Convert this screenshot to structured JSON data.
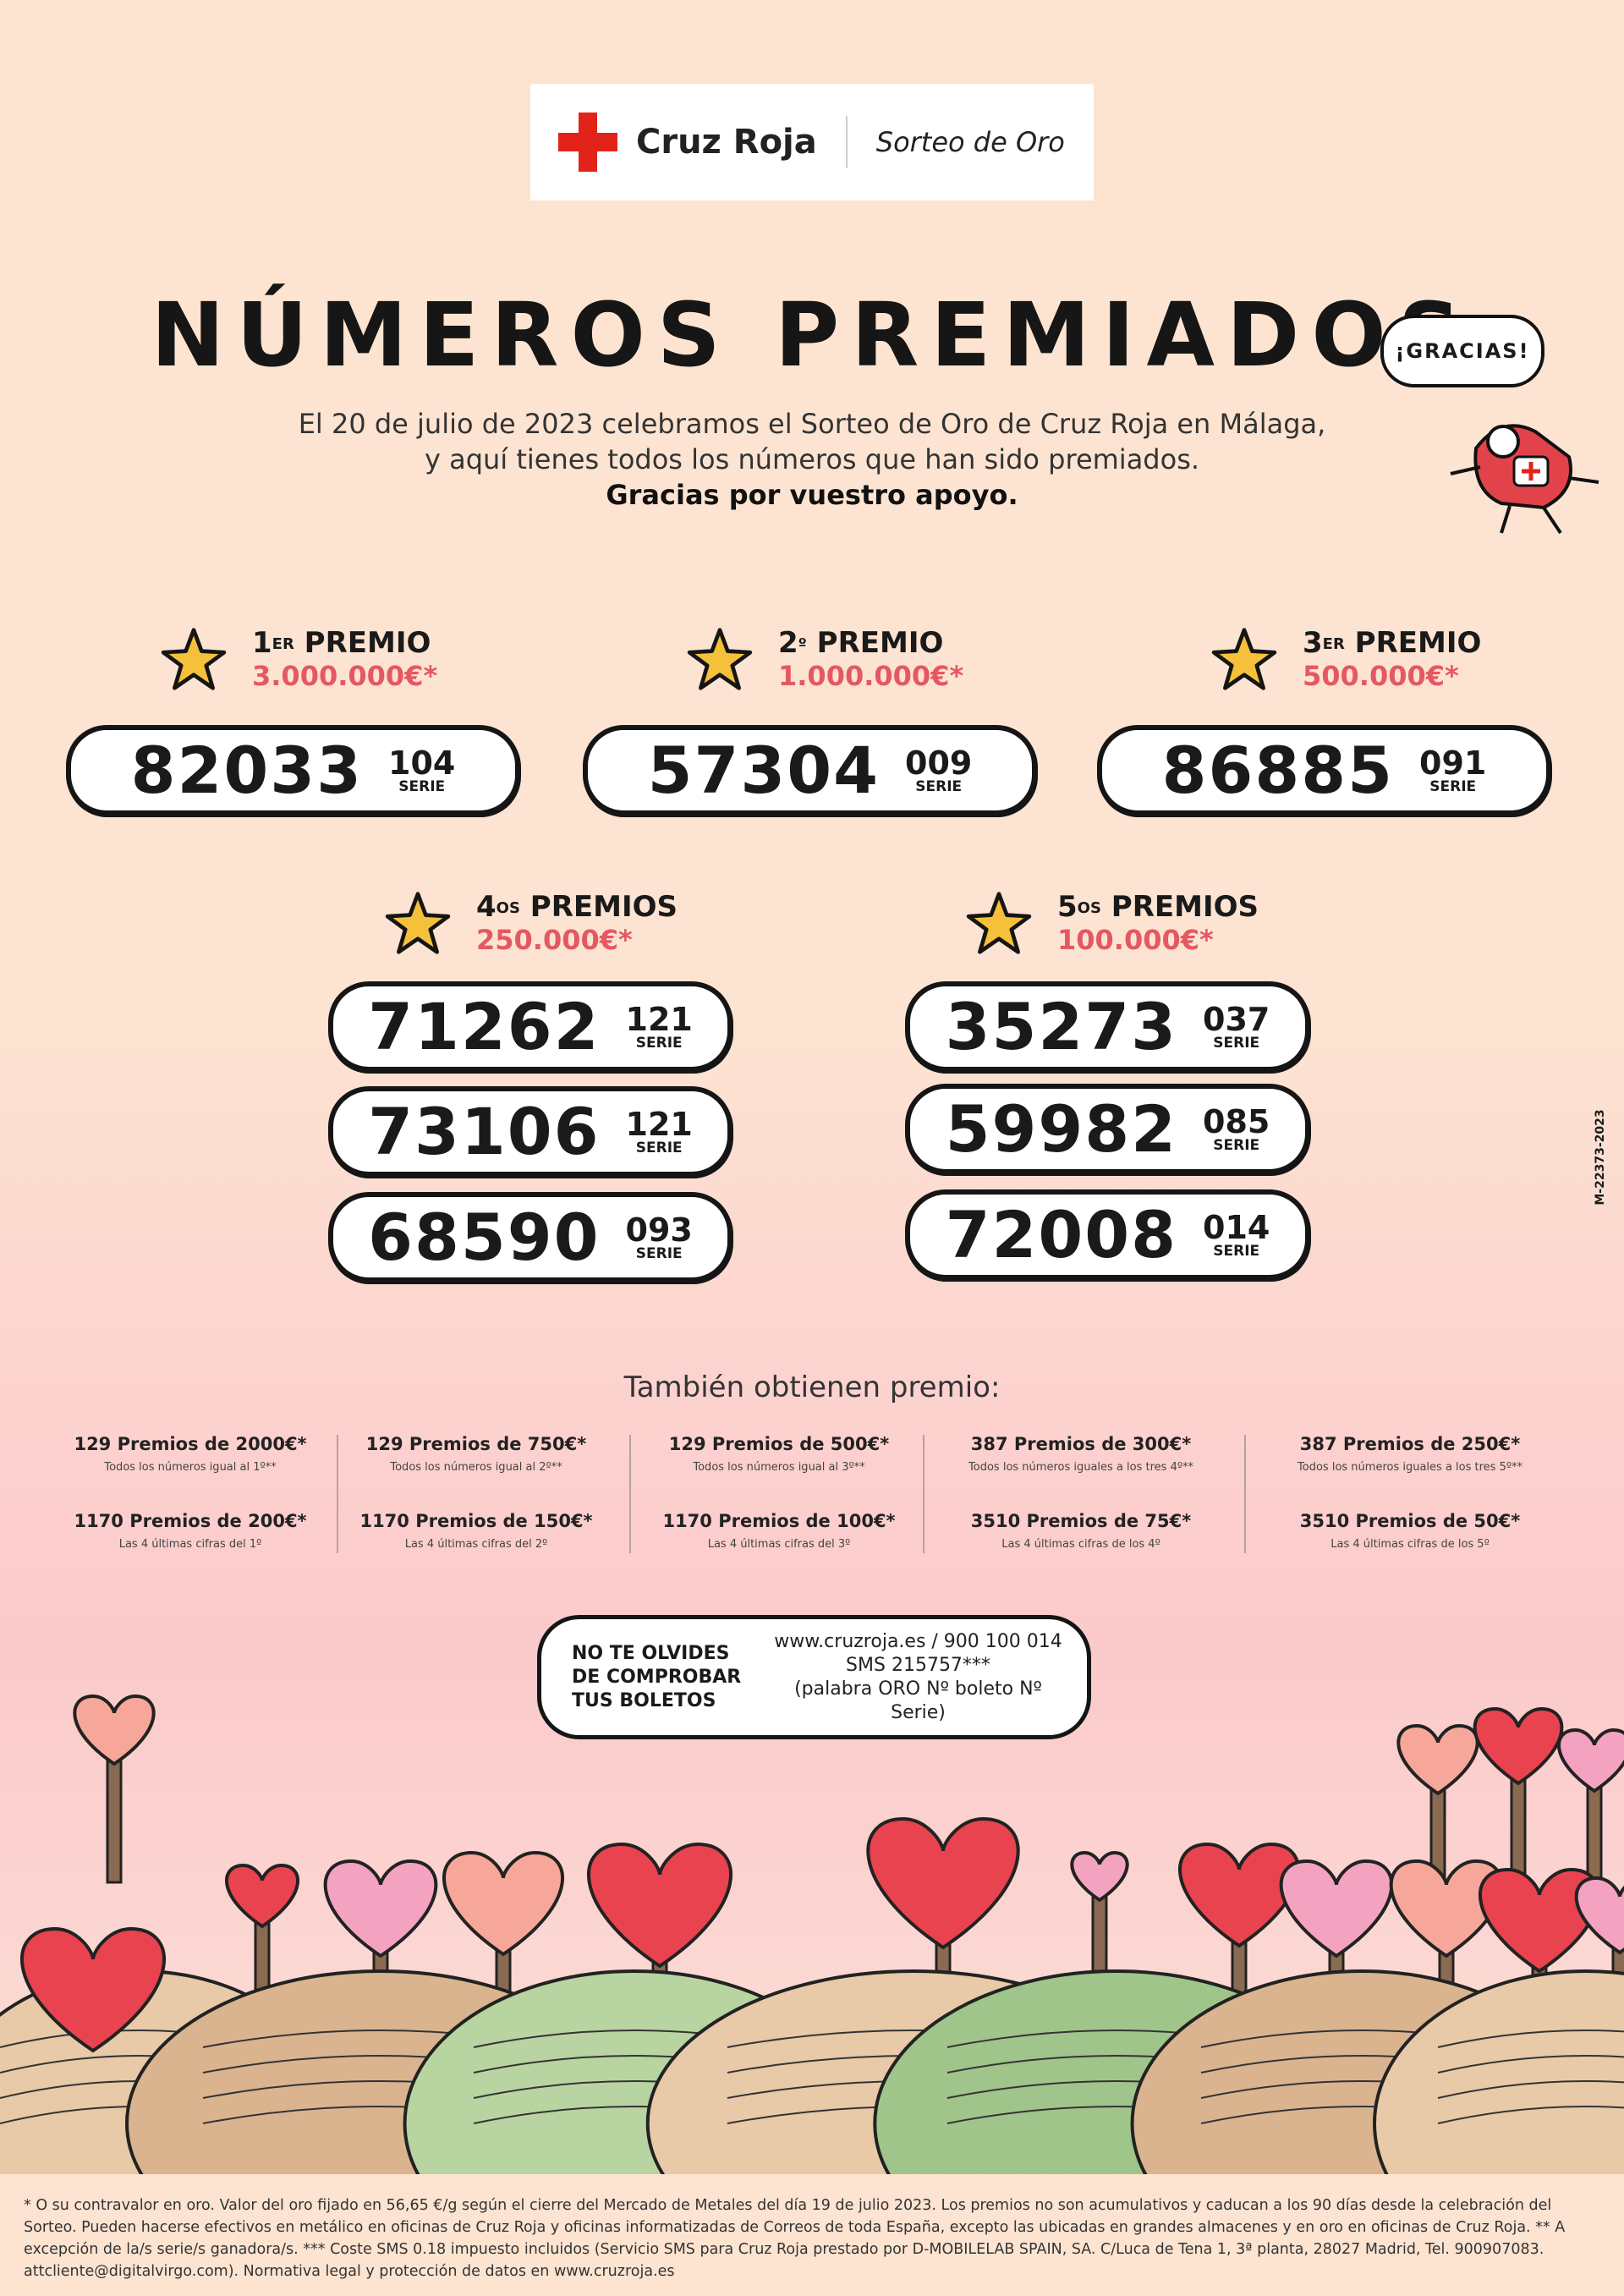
{
  "header": {
    "brand": "Cruz Roja",
    "product": "Sorteo de Oro"
  },
  "title": "NÚMEROS PREMIADOS",
  "intro": {
    "line1": "El 20 de julio de 2023 celebramos el Sorteo de Oro de Cruz Roja en Málaga,",
    "line2": "y aquí tienes todos los números que han sido premiados.",
    "line3": "Gracias por vuestro apoyo."
  },
  "gracias_bubble": "¡GRACIAS!",
  "serie_label": "SERIE",
  "prizes": [
    {
      "ord": "1",
      "sup": "ER",
      "label": "PREMIO",
      "amount": "3.000.000€*",
      "tickets": [
        {
          "number": "82033",
          "serie": "104"
        }
      ]
    },
    {
      "ord": "2",
      "sup": "º",
      "label": "PREMIO",
      "amount": "1.000.000€*",
      "tickets": [
        {
          "number": "57304",
          "serie": "009"
        }
      ]
    },
    {
      "ord": "3",
      "sup": "ER",
      "label": "PREMIO",
      "amount": "500.000€*",
      "tickets": [
        {
          "number": "86885",
          "serie": "091"
        }
      ]
    },
    {
      "ord": "4",
      "sup": "OS",
      "label": "PREMIOS",
      "amount": "250.000€*",
      "tickets": [
        {
          "number": "71262",
          "serie": "121"
        },
        {
          "number": "73106",
          "serie": "121"
        },
        {
          "number": "68590",
          "serie": "093"
        }
      ]
    },
    {
      "ord": "5",
      "sup": "OS",
      "label": "PREMIOS",
      "amount": "100.000€*",
      "tickets": [
        {
          "number": "35273",
          "serie": "037"
        },
        {
          "number": "59982",
          "serie": "085"
        },
        {
          "number": "72008",
          "serie": "014"
        }
      ]
    }
  ],
  "other_prizes": {
    "title": "También obtienen premio:",
    "columns": [
      {
        "a": "129 Premios de 2000€*",
        "a_sub": "Todos los números igual al 1º**",
        "b": "1170 Premios de 200€*",
        "b_sub": "Las 4 últimas cifras del 1º"
      },
      {
        "a": "129 Premios de 750€*",
        "a_sub": "Todos los números igual al 2º**",
        "b": "1170 Premios de 150€*",
        "b_sub": "Las 4 últimas cifras del 2º"
      },
      {
        "a": "129 Premios de 500€*",
        "a_sub": "Todos los números igual al 3º**",
        "b": "1170 Premios de 100€*",
        "b_sub": "Las 4 últimas cifras del 3º"
      },
      {
        "a": "387 Premios de 300€*",
        "a_sub": "Todos los números iguales a los tres 4º**",
        "b": "3510 Premios de 75€*",
        "b_sub": "Las 4 últimas cifras de los 4º"
      },
      {
        "a": "387 Premios de 250€*",
        "a_sub": "Todos los números iguales a los tres 5º**",
        "b": "3510 Premios de 50€*",
        "b_sub": "Las 4 últimas cifras de los 5º"
      }
    ]
  },
  "reminder": {
    "l1": "NO TE OLVIDES",
    "l2": "DE COMPROBAR",
    "l3": "TUS BOLETOS",
    "r1": "www.cruzroja.es / 900 100 014",
    "r2": "SMS 215757***",
    "r3": "(palabra ORO Nº boleto Nº Serie)"
  },
  "legal_code": "M-22373-2023",
  "footnote": "* O su contravalor en oro. Valor del oro fijado en 56,65 €/g según el cierre del Mercado de Metales del día 19 de julio 2023. Los premios no son acumulativos y caducan a los 90 días desde la celebración del Sorteo. Pueden hacerse efectivos en metálico en oficinas de Cruz Roja y oficinas informatizadas de Correos de toda España, excepto las ubicadas en grandes almacenes y en oro en oficinas de Cruz Roja. ** A excepción de la/s serie/s ganadora/s. *** Coste SMS 0.18 impuesto incluidos (Servicio SMS para Cruz Roja prestado por D-MOBILELAB SPAIN, SA. C/Luca de Tena 1, 3ª planta, 28027 Madrid, Tel. 900907083. attcliente@digitalvirgo.com). Normativa legal y protección de datos en www.cruzroja.es",
  "colors": {
    "red": "#e2231a",
    "amount": "#e45861",
    "star": "#f5c13a",
    "background": "#fde4d1",
    "pink": "#fbcacb"
  }
}
